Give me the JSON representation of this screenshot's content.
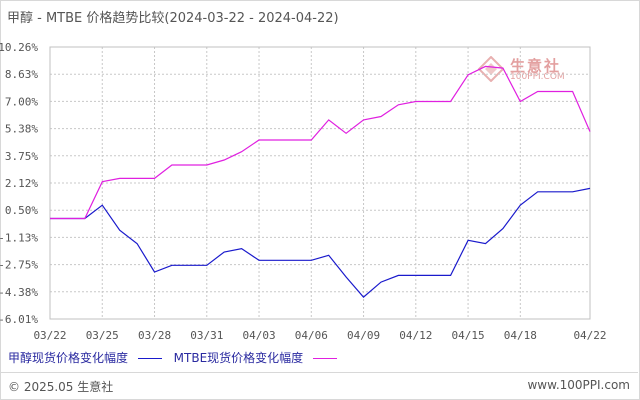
{
  "title": "甲醇 - MTBE 价格趋势比较(2024-03-22 - 2024-04-22)",
  "watermark": {
    "name": "生意社",
    "url": "100PPI.COM"
  },
  "legend": [
    {
      "label": "甲醇现货价格变化幅度",
      "color": "#1a1acc"
    },
    {
      "label": "MTBE现货价格变化幅度",
      "color": "#e020e0"
    }
  ],
  "footer": {
    "copyright": "© 2025.05 生意社",
    "url": "www.100PPI.com"
  },
  "colors": {
    "grid": "#c8c8c8",
    "axis_text": "#555555",
    "axis_border": "#c0c0c0"
  },
  "chart_data": {
    "type": "line",
    "title": "甲醇 - MTBE 价格趋势比较(2024-03-22 - 2024-04-22)",
    "x_ticks": [
      "03/22",
      "03/25",
      "03/28",
      "03/31",
      "04/03",
      "04/06",
      "04/09",
      "04/12",
      "04/15",
      "04/18",
      "04/22"
    ],
    "y_ticks": [
      "10.26%",
      "8.63%",
      "7.00%",
      "5.38%",
      "3.75%",
      "2.12%",
      "0.50%",
      "-1.13%",
      "-2.75%",
      "-4.38%",
      "-6.01%"
    ],
    "ylim": [
      -6.01,
      10.26
    ],
    "grid": true,
    "legend_position": "bottom",
    "series": [
      {
        "name": "甲醇现货价格变化幅度",
        "color": "#1a1acc",
        "points": [
          [
            "03/22",
            0.0
          ],
          [
            "03/24",
            0.0
          ],
          [
            "03/25",
            0.8
          ],
          [
            "03/26",
            -0.7
          ],
          [
            "03/27",
            -1.5
          ],
          [
            "03/28",
            -3.2
          ],
          [
            "03/29",
            -2.8
          ],
          [
            "03/30",
            -2.8
          ],
          [
            "03/31",
            -2.8
          ],
          [
            "04/01",
            -2.0
          ],
          [
            "04/02",
            -1.8
          ],
          [
            "04/03",
            -2.5
          ],
          [
            "04/04",
            -2.5
          ],
          [
            "04/05",
            -2.5
          ],
          [
            "04/06",
            -2.5
          ],
          [
            "04/07",
            -2.2
          ],
          [
            "04/08",
            -3.5
          ],
          [
            "04/09",
            -4.7
          ],
          [
            "04/10",
            -3.8
          ],
          [
            "04/11",
            -3.4
          ],
          [
            "04/12",
            -3.4
          ],
          [
            "04/13",
            -3.4
          ],
          [
            "04/14",
            -3.4
          ],
          [
            "04/15",
            -1.3
          ],
          [
            "04/16",
            -1.5
          ],
          [
            "04/17",
            -0.6
          ],
          [
            "04/18",
            0.8
          ],
          [
            "04/19",
            1.6
          ],
          [
            "04/20",
            1.6
          ],
          [
            "04/21",
            1.6
          ],
          [
            "04/22",
            1.8
          ]
        ]
      },
      {
        "name": "MTBE现货价格变化幅度",
        "color": "#e020e0",
        "points": [
          [
            "03/22",
            0.0
          ],
          [
            "03/24",
            0.0
          ],
          [
            "03/25",
            2.2
          ],
          [
            "03/26",
            2.4
          ],
          [
            "03/27",
            2.4
          ],
          [
            "03/28",
            2.4
          ],
          [
            "03/29",
            3.2
          ],
          [
            "03/30",
            3.2
          ],
          [
            "03/31",
            3.2
          ],
          [
            "04/01",
            3.5
          ],
          [
            "04/02",
            4.0
          ],
          [
            "04/03",
            4.7
          ],
          [
            "04/04",
            4.7
          ],
          [
            "04/05",
            4.7
          ],
          [
            "04/06",
            4.7
          ],
          [
            "04/07",
            5.9
          ],
          [
            "04/08",
            5.1
          ],
          [
            "04/09",
            5.9
          ],
          [
            "04/10",
            6.1
          ],
          [
            "04/11",
            6.8
          ],
          [
            "04/12",
            7.0
          ],
          [
            "04/13",
            7.0
          ],
          [
            "04/14",
            7.0
          ],
          [
            "04/15",
            8.6
          ],
          [
            "04/16",
            9.1
          ],
          [
            "04/17",
            9.0
          ],
          [
            "04/18",
            7.0
          ],
          [
            "04/19",
            7.6
          ],
          [
            "04/20",
            7.6
          ],
          [
            "04/21",
            7.6
          ],
          [
            "04/22",
            5.2
          ]
        ]
      }
    ]
  }
}
